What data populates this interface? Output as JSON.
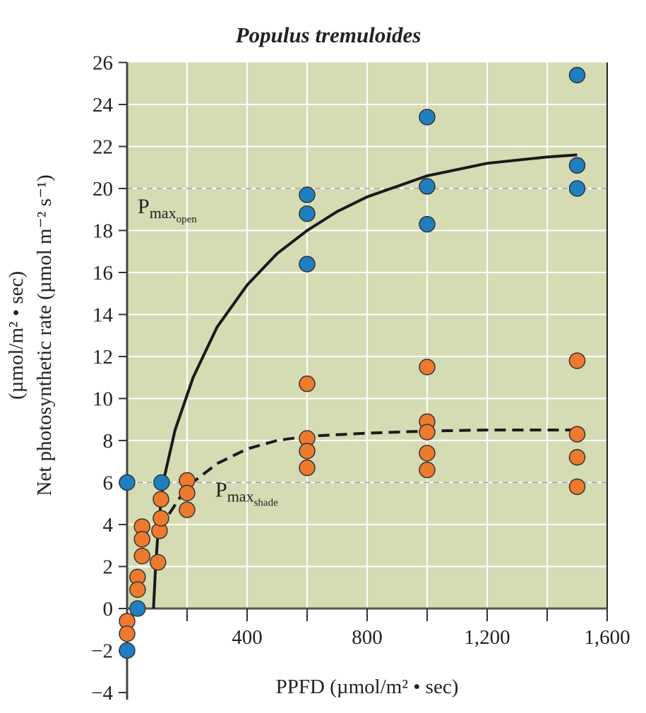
{
  "chart_data": {
    "type": "scatter",
    "title": "Populus tremuloides",
    "xlabel": "PPFD (µmol/m² • sec)",
    "ylabel_line1": "Net photosynthetic rate (µmol m⁻² s⁻¹)",
    "ylabel_line2": "(µmol/m² • sec)",
    "xlim": [
      0,
      1600
    ],
    "ylim": [
      -4,
      26
    ],
    "x_ticks": [
      0,
      200,
      400,
      600,
      800,
      1000,
      1200,
      1400,
      1600
    ],
    "x_tick_labels": [
      {
        "v": 400,
        "t": "400"
      },
      {
        "v": 800,
        "t": "800"
      },
      {
        "v": 1200,
        "t": "1,200"
      },
      {
        "v": 1600,
        "t": "1,600"
      }
    ],
    "y_ticks": [
      -4,
      -2,
      0,
      2,
      4,
      6,
      8,
      10,
      12,
      14,
      16,
      18,
      20,
      22,
      24,
      26
    ],
    "grid": true,
    "colors": {
      "background": "#d5dcb4",
      "open": "#1f7fc1",
      "shade": "#ee7a2e",
      "curve": "#1a1a1a"
    },
    "annotations": [
      {
        "base": "P",
        "sub": "max",
        "subsub": "open",
        "y": 20
      },
      {
        "base": "P",
        "sub": "max",
        "subsub": "shade",
        "y": 6
      }
    ],
    "series": [
      {
        "name": "open",
        "points": [
          [
            0,
            6
          ],
          [
            115,
            6
          ],
          [
            35,
            0
          ],
          [
            0,
            -2
          ],
          [
            600,
            19.7
          ],
          [
            600,
            18.8
          ],
          [
            600,
            16.4
          ],
          [
            1000,
            23.4
          ],
          [
            1000,
            20.1
          ],
          [
            1000,
            18.3
          ],
          [
            1500,
            25.4
          ],
          [
            1500,
            21.1
          ],
          [
            1500,
            20.0
          ]
        ]
      },
      {
        "name": "shade",
        "points": [
          [
            0,
            -0.6
          ],
          [
            0,
            -1.2
          ],
          [
            35,
            1.5
          ],
          [
            35,
            0.9
          ],
          [
            50,
            3.9
          ],
          [
            50,
            3.3
          ],
          [
            50,
            2.5
          ],
          [
            103,
            2.2
          ],
          [
            108,
            3.7
          ],
          [
            113,
            4.3
          ],
          [
            113,
            5.2
          ],
          [
            200,
            6.1
          ],
          [
            200,
            5.5
          ],
          [
            200,
            4.7
          ],
          [
            600,
            10.7
          ],
          [
            600,
            8.1
          ],
          [
            600,
            7.5
          ],
          [
            600,
            6.7
          ],
          [
            1000,
            11.5
          ],
          [
            1000,
            8.9
          ],
          [
            1000,
            8.4
          ],
          [
            1000,
            7.4
          ],
          [
            1000,
            6.6
          ],
          [
            1500,
            11.8
          ],
          [
            1500,
            8.3
          ],
          [
            1500,
            7.2
          ],
          [
            1500,
            5.8
          ]
        ]
      }
    ],
    "curves": [
      {
        "name": "open-fit",
        "style": "solid",
        "points": [
          [
            88,
            0
          ],
          [
            95,
            2
          ],
          [
            105,
            4
          ],
          [
            120,
            6
          ],
          [
            160,
            8.5
          ],
          [
            220,
            11
          ],
          [
            300,
            13.4
          ],
          [
            400,
            15.4
          ],
          [
            500,
            16.9
          ],
          [
            600,
            18
          ],
          [
            700,
            18.9
          ],
          [
            800,
            19.6
          ],
          [
            1000,
            20.6
          ],
          [
            1200,
            21.2
          ],
          [
            1400,
            21.5
          ],
          [
            1500,
            21.6
          ]
        ]
      },
      {
        "name": "shade-fit",
        "style": "dashed",
        "points": [
          [
            140,
            4.5
          ],
          [
            200,
            5.8
          ],
          [
            300,
            6.9
          ],
          [
            400,
            7.6
          ],
          [
            500,
            8.0
          ],
          [
            600,
            8.2
          ],
          [
            800,
            8.35
          ],
          [
            1000,
            8.45
          ],
          [
            1200,
            8.5
          ],
          [
            1500,
            8.5
          ]
        ]
      }
    ]
  }
}
